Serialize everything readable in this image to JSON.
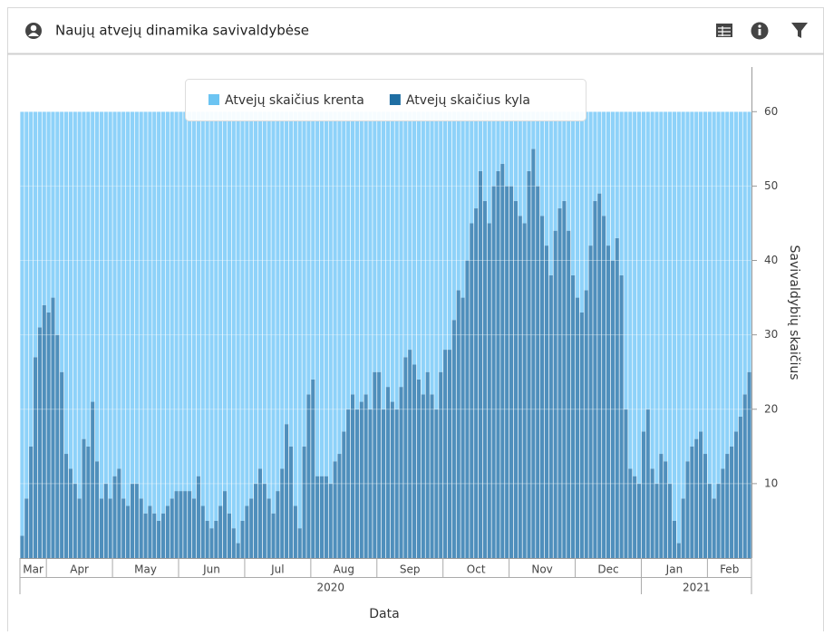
{
  "header": {
    "title": "Naujų atvejų dinamika savivaldybėse"
  },
  "chart_data": {
    "type": "stacked_bar",
    "xlabel": "Data",
    "ylabel": "Savivaldybių skaičius",
    "ylim": [
      0,
      66
    ],
    "yticks": [
      10,
      20,
      30,
      40,
      50,
      60
    ],
    "grid": true,
    "legend": "top",
    "categories": [
      null,
      null,
      null,
      null,
      null,
      null,
      null,
      null,
      null,
      null,
      null,
      null,
      null,
      null,
      null,
      null,
      null,
      null,
      null,
      null,
      null,
      null,
      null,
      null,
      null,
      null,
      null,
      null,
      null,
      null,
      null,
      null,
      null,
      null,
      null,
      null,
      null,
      null,
      null,
      null,
      null,
      null,
      null,
      null,
      null,
      null,
      null,
      null,
      null,
      null,
      null,
      null,
      null,
      null,
      null,
      null,
      null,
      null,
      null,
      null,
      null,
      null,
      null,
      null,
      null,
      null,
      null,
      null,
      null,
      null,
      null,
      null,
      null,
      null,
      null,
      null,
      null,
      null,
      null,
      null,
      null,
      null,
      null,
      null,
      null,
      null,
      null,
      null,
      null,
      null,
      null,
      null,
      null,
      null,
      null,
      null,
      null,
      null,
      null,
      null,
      null,
      null,
      null,
      null,
      null,
      null,
      null,
      null,
      null,
      null,
      null,
      null,
      null,
      null,
      null,
      null,
      null,
      null,
      null,
      null,
      null,
      null,
      null,
      null,
      null,
      null,
      null,
      null,
      null,
      null,
      null,
      null,
      null,
      null,
      null,
      null,
      null,
      null,
      null,
      null,
      null,
      null,
      null,
      null,
      null,
      null,
      null,
      null,
      null,
      null,
      null,
      null,
      null,
      null,
      null,
      null,
      null,
      null,
      null,
      null,
      null,
      null,
      null,
      null,
      null,
      null
    ],
    "xticks": [
      {
        "value": 0,
        "label": "Mar"
      },
      {
        "value": 6,
        "label": "Apr"
      },
      {
        "value": 21,
        "label": "May"
      },
      {
        "value": 36,
        "label": "Jun"
      },
      {
        "value": 51,
        "label": "Jul"
      },
      {
        "value": 66,
        "label": "Aug"
      },
      {
        "value": 81,
        "label": "Sep"
      },
      {
        "value": 96,
        "label": "Oct"
      },
      {
        "value": 111,
        "label": "Nov"
      },
      {
        "value": 126,
        "label": "Dec"
      },
      {
        "value": 141,
        "label": "Jan"
      },
      {
        "value": 156,
        "label": "Feb"
      }
    ],
    "year_ticks": [
      {
        "value": 0,
        "label": "2020"
      },
      {
        "value": 141,
        "label": "2021"
      }
    ],
    "series": [
      {
        "name": "Atvejų skaičius kyla",
        "color": "#4f8fbc",
        "legend_color": "#1f6ea3",
        "values": [
          3,
          8,
          15,
          27,
          31,
          34,
          33,
          35,
          30,
          25,
          14,
          12,
          10,
          8,
          16,
          15,
          21,
          13,
          8,
          10,
          8,
          11,
          12,
          8,
          7,
          10,
          10,
          8,
          6,
          7,
          6,
          5,
          6,
          7,
          8,
          9,
          9,
          9,
          9,
          8,
          11,
          7,
          5,
          4,
          5,
          7,
          9,
          6,
          4,
          2,
          5,
          7,
          8,
          10,
          12,
          10,
          8,
          6,
          9,
          12,
          18,
          15,
          7,
          4,
          15,
          22,
          24,
          11,
          11,
          11,
          10,
          13,
          14,
          17,
          20,
          22,
          20,
          21,
          22,
          20,
          25,
          25,
          20,
          23,
          21,
          20,
          23,
          27,
          28,
          26,
          24,
          22,
          25,
          22,
          20,
          25,
          28,
          28,
          32,
          36,
          35,
          40,
          45,
          47,
          52,
          48,
          45,
          50,
          52,
          53,
          50,
          50,
          48,
          46,
          45,
          52,
          55,
          50,
          46,
          42,
          38,
          44,
          47,
          48,
          44,
          38,
          35,
          33,
          36,
          42,
          48,
          49,
          46,
          42,
          40,
          43,
          38,
          20,
          12,
          11,
          10,
          17,
          20,
          12,
          10,
          14,
          13,
          10,
          5,
          2,
          8,
          13,
          15,
          16,
          17,
          14,
          10,
          8,
          10,
          12,
          14,
          15,
          17,
          19,
          22,
          25
        ]
      },
      {
        "name": "Atvejų skaičius krenta",
        "color": "#8ed2f9",
        "legend_color": "#6cc4f2",
        "values": [
          57,
          52,
          45,
          33,
          29,
          26,
          27,
          25,
          30,
          35,
          46,
          48,
          50,
          52,
          44,
          45,
          39,
          47,
          52,
          50,
          52,
          49,
          48,
          52,
          53,
          50,
          50,
          52,
          54,
          53,
          54,
          55,
          54,
          53,
          52,
          51,
          51,
          51,
          51,
          52,
          49,
          53,
          55,
          56,
          55,
          53,
          51,
          54,
          56,
          58,
          55,
          53,
          52,
          50,
          48,
          50,
          52,
          54,
          51,
          48,
          42,
          45,
          53,
          56,
          45,
          38,
          36,
          49,
          49,
          49,
          50,
          47,
          46,
          43,
          40,
          38,
          40,
          39,
          38,
          40,
          35,
          35,
          40,
          37,
          39,
          40,
          37,
          33,
          32,
          34,
          36,
          38,
          35,
          38,
          40,
          35,
          32,
          32,
          28,
          24,
          25,
          20,
          15,
          13,
          8,
          12,
          15,
          10,
          8,
          7,
          10,
          10,
          12,
          14,
          15,
          8,
          5,
          10,
          14,
          18,
          22,
          16,
          13,
          12,
          16,
          22,
          25,
          27,
          24,
          18,
          12,
          11,
          14,
          18,
          20,
          17,
          22,
          40,
          48,
          49,
          50,
          43,
          40,
          48,
          50,
          46,
          47,
          50,
          55,
          58,
          52,
          47,
          45,
          44,
          43,
          46,
          50,
          52,
          50,
          48,
          46,
          45,
          43,
          41,
          38,
          35
        ]
      }
    ]
  }
}
